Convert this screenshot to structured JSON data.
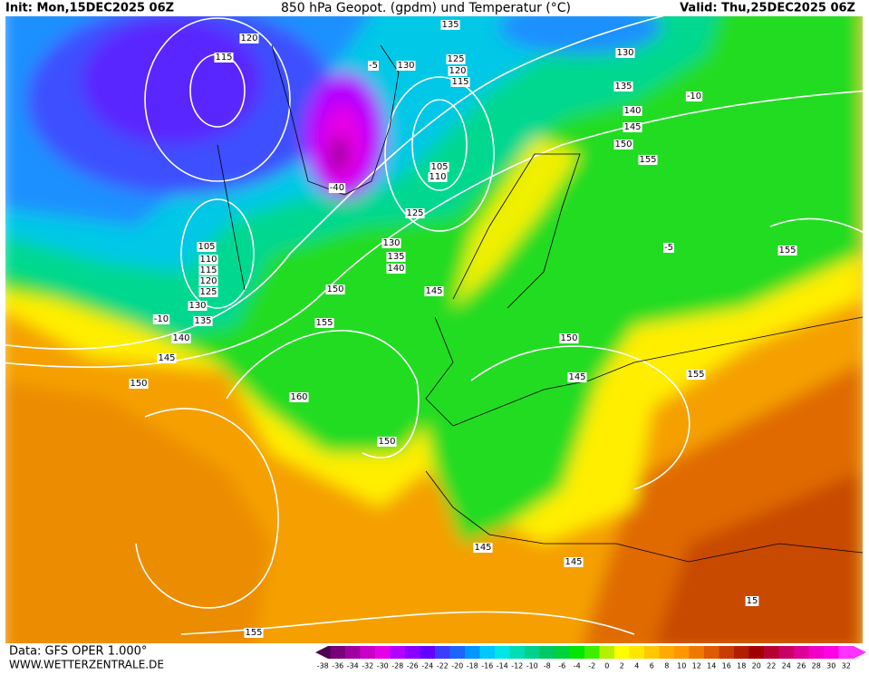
{
  "header": {
    "init": "Init: Mon,15DEC2025 06Z",
    "title": "850 hPa Geopot. (gpdm) und Temperatur (°C)",
    "valid": "Valid: Thu,25DEC2025 06Z"
  },
  "footer": {
    "data": "Data: GFS OPER 1.000°",
    "site": "WWW.WETTERZENTRALE.DE"
  },
  "contour_labels": [
    120,
    115,
    135,
    130,
    125,
    120,
    115,
    130,
    135,
    140,
    145,
    150,
    155,
    105,
    110,
    -40,
    125,
    130,
    135,
    140,
    105,
    110,
    115,
    120,
    125,
    130,
    135,
    140,
    145,
    150,
    150,
    145,
    155,
    150,
    145,
    155,
    155,
    160,
    150,
    145,
    145,
    155,
    -10,
    -10,
    -5,
    15,
    -5
  ],
  "colorbar": {
    "values": [
      -38,
      -36,
      -34,
      -32,
      -30,
      -28,
      -26,
      -24,
      -22,
      -20,
      -18,
      -16,
      -14,
      -12,
      -10,
      -8,
      -6,
      -4,
      -2,
      0,
      2,
      4,
      6,
      8,
      10,
      12,
      14,
      16,
      18,
      20,
      22,
      24,
      26,
      28,
      30,
      32
    ],
    "colors": [
      "#500050",
      "#780078",
      "#a000a0",
      "#c800c8",
      "#e600e6",
      "#b400ff",
      "#8c00ff",
      "#6400ff",
      "#3c3cff",
      "#1e64ff",
      "#0096ff",
      "#00c8ff",
      "#00e6e6",
      "#00dcb4",
      "#00d28c",
      "#00c864",
      "#00d23c",
      "#00e600",
      "#3cf000",
      "#b4f000",
      "#ffff00",
      "#ffe600",
      "#ffc800",
      "#ffaa00",
      "#ff9600",
      "#f07800",
      "#e05a00",
      "#c83c00",
      "#b41e00",
      "#a00000",
      "#b40032",
      "#c80064",
      "#dc0096",
      "#f000c8",
      "#ff00e6",
      "#ff32ff"
    ]
  }
}
